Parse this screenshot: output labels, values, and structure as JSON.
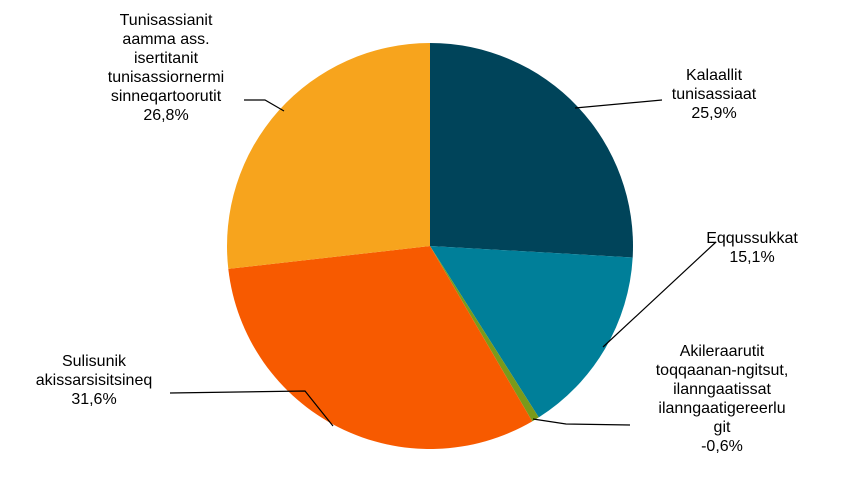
{
  "chart_data": {
    "type": "pie",
    "title": "",
    "slices": [
      {
        "label_lines": [
          "Kalaallit",
          "tunisassiaat"
        ],
        "value_label": "25,9%",
        "value": 25.9,
        "magnitude": 25.9,
        "color": "#00445a"
      },
      {
        "label_lines": [
          "Eqqussukkat"
        ],
        "value_label": "15,1%",
        "value": 15.1,
        "magnitude": 15.1,
        "color": "#007f99"
      },
      {
        "label_lines": [
          "Akileraarutit",
          "toqqaanan-ngitsut,",
          "ilanngaatissat",
          "ilanngaatigereerlu",
          "git"
        ],
        "value_label": "-0,6%",
        "value": -0.6,
        "magnitude": 0.6,
        "color": "#7a9a1a"
      },
      {
        "label_lines": [
          "Sulisunik",
          "akissarsisitsineq"
        ],
        "value_label": "31,6%",
        "value": 31.6,
        "magnitude": 31.6,
        "color": "#f75a00"
      },
      {
        "label_lines": [
          "Tunisassianit",
          "aamma ass.",
          "isertitanit",
          "tunisassiornermi",
          "sinneqartoorutit"
        ],
        "value_label": "26,8%",
        "value": 26.8,
        "magnitude": 26.8,
        "color": "#f7a41d"
      }
    ]
  }
}
